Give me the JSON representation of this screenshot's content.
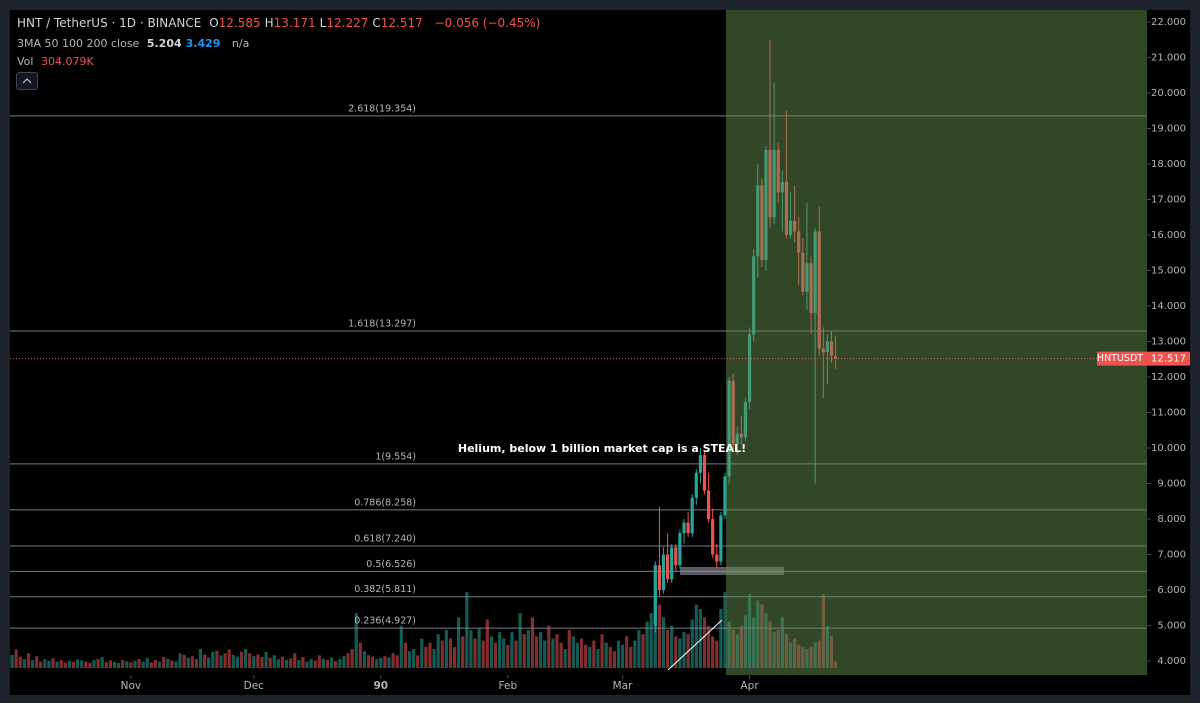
{
  "chart_data": {
    "type": "candlestick",
    "title": "HNT / TetherUS · 1D · BINANCE",
    "ohlc": [
      {
        "label": "O",
        "value": 12.585
      },
      {
        "label": "H",
        "value": 13.171
      },
      {
        "label": "L",
        "value": 12.227
      },
      {
        "label": "C",
        "value": 12.517
      }
    ],
    "change": "−0.056 (−0.45%)",
    "indicator": {
      "name": "3MA 50 100 200 close",
      "values": [
        5.204,
        3.429
      ],
      "colors": [
        "#d1d4dc",
        "#2196f3"
      ],
      "missing": "n/a"
    },
    "volume_title": "Vol",
    "volume_label": "304.079K",
    "symbol_tag": "HNTUSDT",
    "annotation": "Helium, below 1 billion market cap is a STEAL!",
    "up_color": "#26a69a",
    "down_color": "#ef5350",
    "x": [
      157,
      158,
      159,
      160,
      161,
      162,
      163,
      164,
      165,
      166,
      167,
      168,
      169,
      170,
      171,
      172,
      173,
      174,
      175,
      176,
      177,
      178,
      179,
      180,
      181,
      182,
      183,
      184,
      185,
      186,
      187,
      188,
      189,
      190,
      191,
      192,
      193,
      194,
      195,
      196,
      197,
      198,
      199,
      200,
      201
    ],
    "candles": [
      [
        5.0,
        6.8,
        4.8,
        6.7
      ],
      [
        6.7,
        8.35,
        5.8,
        6.0
      ],
      [
        6.0,
        7.2,
        5.9,
        7.0
      ],
      [
        7.0,
        7.6,
        6.2,
        6.3
      ],
      [
        6.3,
        7.3,
        6.2,
        7.2
      ],
      [
        7.2,
        7.3,
        6.5,
        6.7
      ],
      [
        6.7,
        7.7,
        6.6,
        7.6
      ],
      [
        7.6,
        8.0,
        7.3,
        7.9
      ],
      [
        7.9,
        8.2,
        7.5,
        7.6
      ],
      [
        7.6,
        8.7,
        7.5,
        8.6
      ],
      [
        8.6,
        9.4,
        8.4,
        9.3
      ],
      [
        9.3,
        10.0,
        9.0,
        9.8
      ],
      [
        9.8,
        9.9,
        8.7,
        8.8
      ],
      [
        8.8,
        9.3,
        7.9,
        8.0
      ],
      [
        8.0,
        8.3,
        6.9,
        7.0
      ],
      [
        7.0,
        7.3,
        6.6,
        6.8
      ],
      [
        6.8,
        8.2,
        6.7,
        8.1
      ],
      [
        8.1,
        9.3,
        8.0,
        9.2
      ],
      [
        9.2,
        12.0,
        9.0,
        11.9
      ],
      [
        11.9,
        12.1,
        9.9,
        10.1
      ],
      [
        10.1,
        10.6,
        9.8,
        10.4
      ],
      [
        10.4,
        10.9,
        10.1,
        10.3
      ],
      [
        10.3,
        11.4,
        10.2,
        11.3
      ],
      [
        11.3,
        13.4,
        11.1,
        13.2
      ],
      [
        13.2,
        15.6,
        13.0,
        15.4
      ],
      [
        15.4,
        18.0,
        14.8,
        17.4
      ],
      [
        17.4,
        17.6,
        15.1,
        15.3
      ],
      [
        15.3,
        18.5,
        15.0,
        18.4
      ],
      [
        18.4,
        21.5,
        16.2,
        16.5
      ],
      [
        16.5,
        20.3,
        16.3,
        18.4
      ],
      [
        18.4,
        18.6,
        16.9,
        17.2
      ],
      [
        17.2,
        17.8,
        16.1,
        17.5
      ],
      [
        17.5,
        19.5,
        15.9,
        16.0
      ],
      [
        16.0,
        17.2,
        15.9,
        16.4
      ],
      [
        16.4,
        17.4,
        15.8,
        16.1
      ],
      [
        16.1,
        16.5,
        14.6,
        15.5
      ],
      [
        15.5,
        15.9,
        14.3,
        14.4
      ],
      [
        14.4,
        16.9,
        13.9,
        15.2
      ],
      [
        15.2,
        15.4,
        13.2,
        13.8
      ],
      [
        13.8,
        16.2,
        9.0,
        16.1
      ],
      [
        16.1,
        16.8,
        12.6,
        12.8
      ],
      [
        12.8,
        13.4,
        11.4,
        12.7
      ],
      [
        12.7,
        13.2,
        11.8,
        13.0
      ],
      [
        13.0,
        13.3,
        12.4,
        12.6
      ],
      [
        12.585,
        13.171,
        12.227,
        12.517
      ]
    ],
    "volume": {
      "ylim": [
        0,
        9000
      ],
      "values": [
        620,
        880,
        540,
        420,
        700,
        380,
        560,
        300,
        420,
        350,
        460,
        300,
        380,
        260,
        340,
        290,
        410,
        360,
        300,
        250,
        380,
        430,
        520,
        280,
        360,
        300,
        240,
        380,
        320,
        270,
        350,
        420,
        300,
        480,
        260,
        380,
        300,
        520,
        440,
        360,
        300,
        700,
        620,
        480,
        560,
        420,
        900,
        640,
        500,
        760,
        820,
        600,
        700,
        880,
        620,
        540,
        780,
        900,
        700,
        560,
        640,
        520,
        760,
        480,
        600,
        420,
        540,
        380,
        460,
        700,
        380,
        520,
        300,
        420,
        360,
        600,
        440,
        380,
        500,
        320,
        420,
        560,
        700,
        900,
        2600,
        1200,
        800,
        600,
        540,
        420,
        480,
        560,
        500,
        700,
        600,
        2000,
        1200,
        800,
        900,
        600,
        1400,
        1000,
        1200,
        900,
        1600,
        1300,
        1800,
        1400,
        1000,
        2400,
        1500,
        3600,
        1800,
        1400,
        1900,
        1300,
        2300,
        1500,
        1200,
        1700,
        1400,
        1100,
        1700,
        1300,
        2600,
        1600,
        1800,
        2400,
        1500,
        1700,
        1300,
        2000,
        1400,
        1600,
        1200,
        900,
        1800,
        1500,
        1200,
        1400,
        1100,
        1000,
        1300,
        900,
        1600,
        1200,
        1000,
        800,
        1300,
        1100,
        1500,
        1000,
        1300,
        1800,
        1600,
        2200,
        2600,
        4500,
        3000,
        2400,
        1800,
        2000,
        1500,
        1400,
        1700,
        1600,
        2300,
        3000,
        2800,
        2400,
        2000,
        1500,
        1300,
        2800,
        3600,
        2200,
        1800,
        1600,
        2000,
        2500,
        3500,
        2400,
        3200,
        3000,
        2600,
        2200,
        1700,
        1800,
        2400,
        1600,
        1200,
        1400,
        1100,
        1000,
        900,
        1000,
        1200,
        1300,
        3500,
        2000,
        1500,
        304.079
      ],
      "up": [
        1,
        0,
        0,
        1,
        0,
        1,
        0,
        0,
        1,
        1,
        0,
        1,
        0,
        0,
        1,
        0,
        1,
        1,
        0,
        0,
        1,
        0,
        1,
        0,
        0,
        1,
        1,
        0,
        1,
        0,
        1,
        0,
        1,
        1,
        0,
        0,
        1,
        0,
        1,
        0,
        1,
        1,
        0,
        1,
        0,
        0,
        1,
        0,
        1,
        1,
        0,
        1,
        0,
        0,
        1,
        1,
        0,
        1,
        0,
        1,
        0,
        0,
        1,
        0,
        1,
        1,
        0,
        1,
        0,
        0,
        1,
        0,
        1,
        1,
        0,
        0,
        1,
        0,
        1,
        0,
        1,
        1,
        0,
        0,
        1,
        0,
        1,
        0,
        0,
        1,
        1,
        0,
        1,
        0,
        0,
        1,
        0,
        1,
        1,
        0,
        1,
        0,
        0,
        1,
        1,
        0,
        1,
        0,
        0,
        1,
        0,
        1,
        1,
        0,
        1,
        0,
        0,
        1,
        0,
        1,
        1,
        0,
        1,
        0,
        1,
        0,
        1,
        0,
        0,
        1,
        1,
        0,
        1,
        0,
        0,
        1,
        0,
        1,
        1,
        0,
        0,
        1,
        0,
        1,
        0,
        1,
        0,
        0,
        1,
        1,
        0,
        0,
        1,
        1,
        0,
        1,
        1,
        1,
        0,
        1,
        0,
        1,
        0,
        1,
        1,
        0,
        1,
        1,
        1,
        0,
        0,
        0,
        0,
        1,
        1,
        1,
        0,
        1,
        0,
        1,
        1,
        1,
        1,
        0,
        1,
        0,
        1,
        0,
        1,
        0,
        1,
        0,
        0,
        0,
        1,
        0,
        1,
        0,
        0,
        1,
        0,
        0
      ]
    },
    "xlim": [
      -0.5,
      277
    ],
    "xticks": [
      {
        "value": 29,
        "label": "Nov"
      },
      {
        "value": 59,
        "label": "Dec"
      },
      90,
      {
        "value": 121,
        "label": "Feb"
      },
      {
        "value": 149,
        "label": "Mar"
      },
      {
        "value": 180,
        "label": "Apr"
      }
    ],
    "ylim": [
      4,
      22
    ],
    "yticks": [
      {
        "value": 4,
        "label": "4.000"
      },
      {
        "value": 5,
        "label": "5.000"
      },
      {
        "value": 6,
        "label": "6.000"
      },
      {
        "value": 7,
        "label": "7.000"
      },
      {
        "value": 8,
        "label": "8.000"
      },
      {
        "value": 9,
        "label": "9.000"
      },
      {
        "value": 10,
        "label": "10.000"
      },
      {
        "value": 11,
        "label": "11.000"
      },
      {
        "value": 12,
        "label": "12.000"
      },
      {
        "value": 13,
        "label": "13.000"
      },
      {
        "value": 14,
        "label": "14.000"
      },
      {
        "value": 15,
        "label": "15.000"
      },
      {
        "value": 16,
        "label": "16.000"
      },
      {
        "value": 17,
        "label": "17.000"
      },
      {
        "value": 18,
        "label": "18.000"
      },
      {
        "value": 19,
        "label": "19.000"
      },
      {
        "value": 20,
        "label": "20.000"
      },
      {
        "value": 21,
        "label": "21.000"
      },
      {
        "value": 22,
        "label": "22.000"
      }
    ],
    "fib_levels": [
      {
        "value": 19.354,
        "label": "2.618(19.354)"
      },
      {
        "value": 13.297,
        "label": "1.618(13.297)"
      },
      {
        "value": 9.554,
        "label": "1(9.554)"
      },
      {
        "value": 8.258,
        "label": "0.786(8.258)"
      },
      {
        "value": 7.24,
        "label": "0.618(7.240)"
      },
      {
        "value": 6.526,
        "label": "0.5(6.526)"
      },
      {
        "value": 5.811,
        "label": "0.382(5.811)"
      },
      {
        "value": 4.927,
        "label": "0.236(4.927)"
      }
    ]
  }
}
